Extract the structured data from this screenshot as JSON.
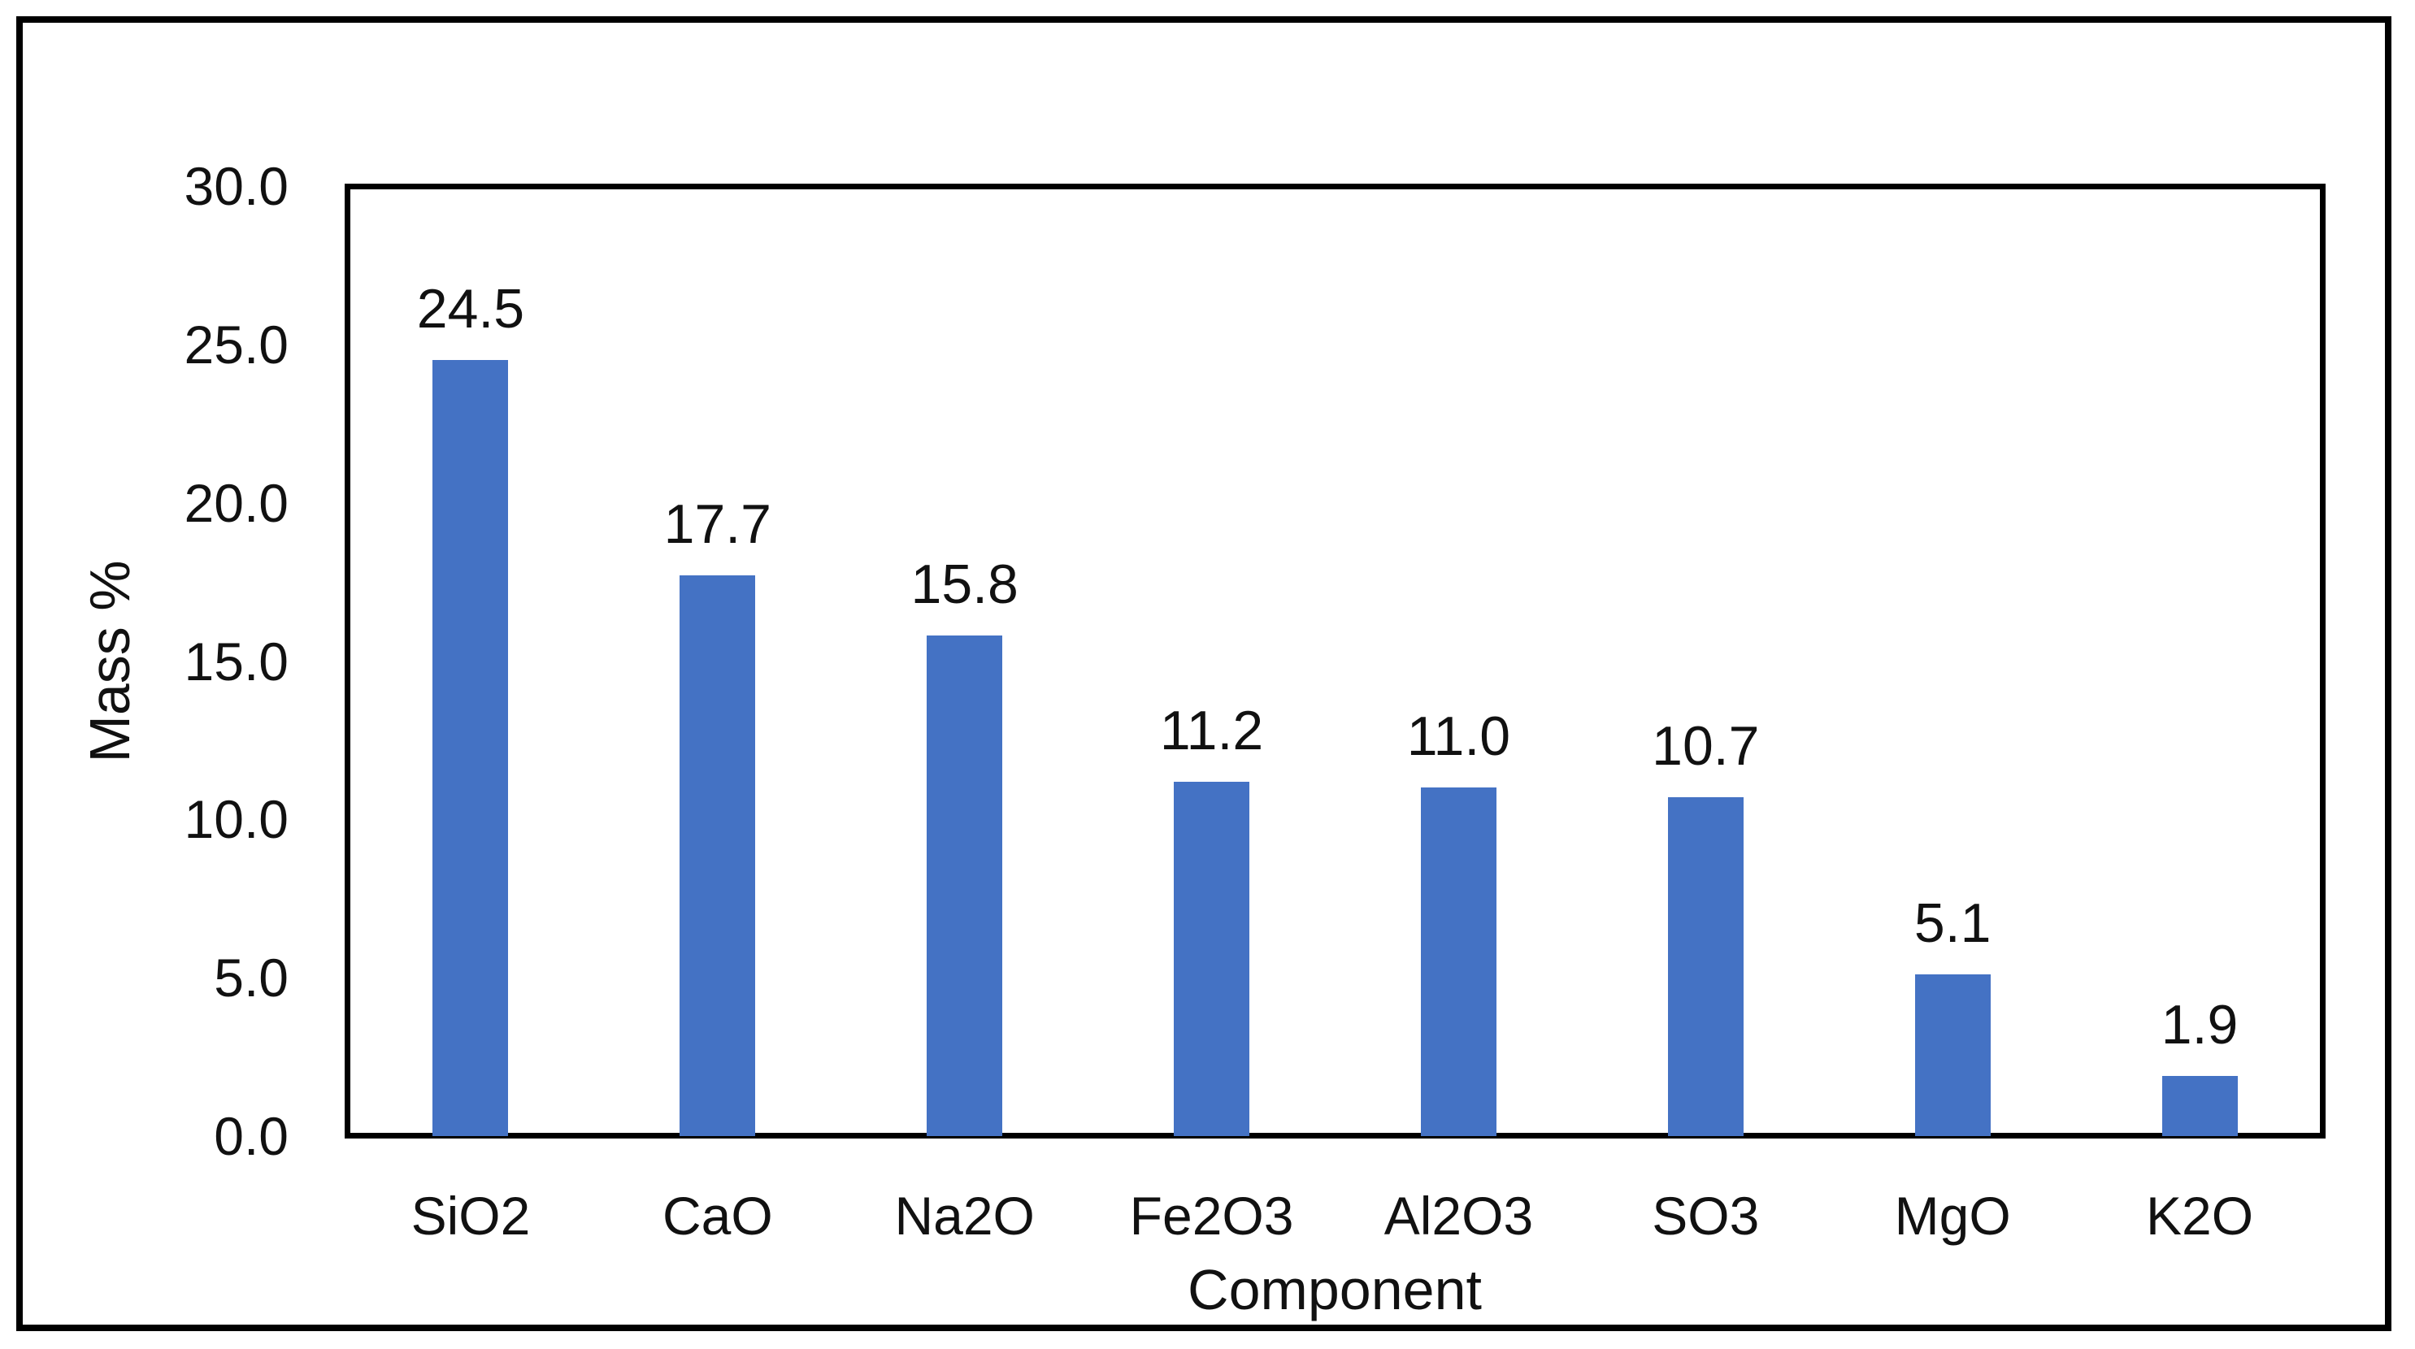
{
  "figure": {
    "background_color": "#ffffff",
    "frame_color": "#000000"
  },
  "chart_data": {
    "type": "bar",
    "title": "",
    "xlabel": "Component",
    "ylabel": "Mass %",
    "categories": [
      "SiO2",
      "CaO",
      "Na2O",
      "Fe2O3",
      "Al2O3",
      "SO3",
      "MgO",
      "K2O"
    ],
    "values": [
      24.5,
      17.7,
      15.8,
      11.2,
      11.0,
      10.7,
      5.1,
      1.9
    ],
    "data_labels": [
      "24.5",
      "17.7",
      "15.8",
      "11.2",
      "11.0",
      "10.7",
      "5.1",
      "1.9"
    ],
    "ylim": [
      0,
      30
    ],
    "ytick_step": 5,
    "ytick_labels": [
      "0.0",
      "5.0",
      "10.0",
      "15.0",
      "20.0",
      "25.0",
      "30.0"
    ],
    "grid": false,
    "legend": "none",
    "bar_color": "#4472C4",
    "text_color": "#111111"
  }
}
